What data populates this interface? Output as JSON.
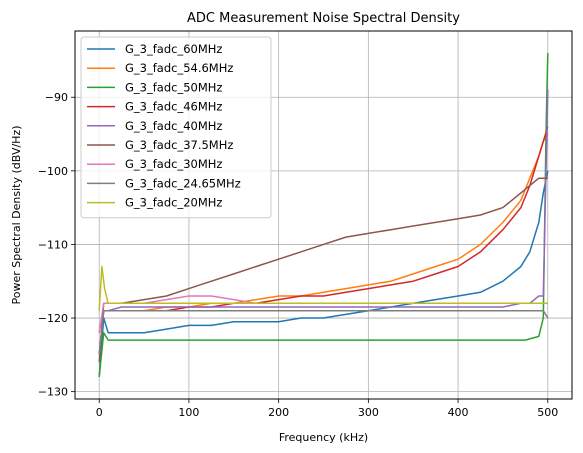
{
  "chart_data": {
    "type": "line",
    "title": "ADC Measurement Noise Spectral Density",
    "xlabel": "Frequency (kHz)",
    "ylabel": "Power Spectral Density (dBV/Hz)",
    "xlim": [
      -27,
      527
    ],
    "ylim": [
      -131,
      -81
    ],
    "xticks": [
      0,
      100,
      200,
      300,
      400,
      500
    ],
    "yticks": [
      -130,
      -120,
      -110,
      -100,
      -90
    ],
    "grid": true,
    "legend_position": "top-left",
    "series": [
      {
        "name": "G_3_fadc_60MHz",
        "color": "#1f77b4",
        "x": [
          0,
          5,
          10,
          25,
          50,
          75,
          100,
          125,
          150,
          175,
          200,
          225,
          250,
          275,
          300,
          325,
          350,
          375,
          400,
          425,
          450,
          470,
          480,
          490,
          495,
          500
        ],
        "y": [
          -128,
          -120,
          -122,
          -122,
          -122,
          -121.5,
          -121,
          -121,
          -120.5,
          -120.5,
          -120.5,
          -120,
          -120,
          -119.5,
          -119,
          -118.5,
          -118,
          -117.5,
          -117,
          -116.5,
          -115,
          -113,
          -111,
          -107,
          -103,
          -100
        ]
      },
      {
        "name": "G_3_fadc_54.6MHz",
        "color": "#ff7f0e",
        "x": [
          0,
          5,
          10,
          25,
          50,
          75,
          100,
          125,
          150,
          175,
          200,
          225,
          250,
          275,
          300,
          325,
          350,
          375,
          400,
          425,
          450,
          470,
          480,
          490,
          495,
          500
        ],
        "y": [
          -122,
          -119,
          -119,
          -119,
          -119,
          -118.5,
          -118.5,
          -118,
          -118,
          -117.5,
          -117,
          -117,
          -116.5,
          -116,
          -115.5,
          -115,
          -114,
          -113,
          -112,
          -110,
          -107,
          -104,
          -101,
          -98,
          -96,
          -95
        ]
      },
      {
        "name": "G_3_fadc_50MHz",
        "color": "#2ca02c",
        "x": [
          0,
          5,
          10,
          25,
          50,
          75,
          100,
          125,
          150,
          175,
          200,
          225,
          250,
          275,
          300,
          325,
          350,
          375,
          400,
          425,
          450,
          475,
          490,
          495,
          498,
          500
        ],
        "y": [
          -128,
          -122,
          -123,
          -123,
          -123,
          -123,
          -123,
          -123,
          -123,
          -123,
          -123,
          -123,
          -123,
          -123,
          -123,
          -123,
          -123,
          -123,
          -123,
          -123,
          -123,
          -123,
          -122.5,
          -120,
          -95,
          -84
        ]
      },
      {
        "name": "G_3_fadc_46MHz",
        "color": "#d62728",
        "x": [
          0,
          5,
          10,
          25,
          50,
          75,
          100,
          125,
          150,
          175,
          200,
          225,
          250,
          275,
          300,
          325,
          350,
          375,
          400,
          425,
          450,
          470,
          480,
          490,
          495,
          500
        ],
        "y": [
          -125,
          -119,
          -119,
          -119,
          -119,
          -119,
          -118.5,
          -118.5,
          -118,
          -118,
          -117.5,
          -117,
          -117,
          -116.5,
          -116,
          -115.5,
          -115,
          -114,
          -113,
          -111,
          -108,
          -105,
          -102,
          -98,
          -96,
          -94
        ]
      },
      {
        "name": "G_3_fadc_40MHz",
        "color": "#9467bd",
        "x": [
          0,
          5,
          10,
          25,
          50,
          75,
          100,
          125,
          150,
          175,
          200,
          225,
          250,
          275,
          300,
          325,
          350,
          375,
          400,
          425,
          450,
          470,
          480,
          490,
          495,
          500
        ],
        "y": [
          -125,
          -119,
          -119,
          -118.5,
          -118.5,
          -118.5,
          -118.5,
          -118.5,
          -118.5,
          -118.5,
          -118.5,
          -118.5,
          -118.5,
          -118.5,
          -118.5,
          -118.5,
          -118.5,
          -118.5,
          -118.5,
          -118.5,
          -118.5,
          -118,
          -118,
          -117,
          -117,
          -89
        ]
      },
      {
        "name": "G_3_fadc_37.5MHz",
        "color": "#8c564b",
        "x": [
          0,
          5,
          10,
          25,
          50,
          75,
          100,
          125,
          150,
          175,
          200,
          225,
          250,
          275,
          300,
          325,
          350,
          375,
          400,
          425,
          450,
          470,
          480,
          490,
          495,
          500
        ],
        "y": [
          -126,
          -118,
          -118,
          -118,
          -117.5,
          -117,
          -116,
          -115,
          -114,
          -113,
          -112,
          -111,
          -110,
          -109,
          -108.5,
          -108,
          -107.5,
          -107,
          -106.5,
          -106,
          -105,
          -103,
          -102,
          -101,
          -101,
          -101
        ]
      },
      {
        "name": "G_3_fadc_30MHz",
        "color": "#e377c2",
        "x": [
          0,
          5,
          10,
          25,
          50,
          75,
          100,
          125,
          150,
          175,
          200,
          225,
          250,
          275,
          300,
          325,
          350,
          375,
          400,
          425,
          450,
          475,
          490,
          495,
          500
        ],
        "y": [
          -122,
          -118,
          -118,
          -118,
          -118,
          -117.5,
          -117,
          -117,
          -117.5,
          -118,
          -118,
          -118,
          -118,
          -118,
          -118,
          -118,
          -118,
          -118,
          -118,
          -118,
          -118,
          -118,
          -118,
          -118,
          -118
        ]
      },
      {
        "name": "G_3_fadc_24.65MHz",
        "color": "#7f7f7f",
        "x": [
          0,
          5,
          10,
          25,
          50,
          75,
          100,
          125,
          150,
          175,
          200,
          225,
          250,
          275,
          300,
          325,
          350,
          375,
          400,
          425,
          450,
          475,
          490,
          495,
          500
        ],
        "y": [
          -125,
          -119,
          -119,
          -119,
          -119,
          -119,
          -119,
          -119,
          -119,
          -119,
          -119,
          -119,
          -119,
          -119,
          -119,
          -119,
          -119,
          -119,
          -119,
          -119,
          -119,
          -119,
          -119,
          -119,
          -120
        ]
      },
      {
        "name": "G_3_fadc_20MHz",
        "color": "#bcbd22",
        "x": [
          0,
          3,
          6,
          10,
          25,
          50,
          75,
          100,
          125,
          150,
          175,
          200,
          225,
          250,
          275,
          300,
          325,
          350,
          375,
          400,
          425,
          450,
          475,
          490,
          495,
          500
        ],
        "y": [
          -119,
          -113,
          -116,
          -118,
          -118,
          -118,
          -118,
          -118,
          -118,
          -118,
          -118,
          -118,
          -118,
          -118,
          -118,
          -118,
          -118,
          -118,
          -118,
          -118,
          -118,
          -118,
          -118,
          -118,
          -118,
          -118
        ]
      }
    ]
  }
}
